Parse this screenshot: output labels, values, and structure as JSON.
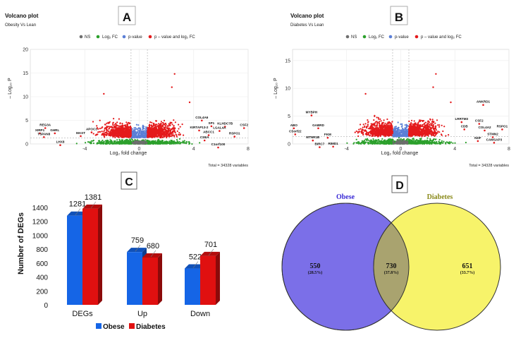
{
  "panels": {
    "A": "A",
    "B": "B",
    "C": "C",
    "D": "D"
  },
  "colors": {
    "ns": "#6e6e6e",
    "log2fc": "#2ca02c",
    "pvalue": "#5b7fd6",
    "both": "#e41a1c",
    "obese": "#1565e6",
    "diabetes": "#e01010",
    "venn_obese": "#7b6fe8",
    "venn_diabetes": "#f7f36a",
    "venn_overlap": "#a9a36f",
    "obese_title": "#3a2bd6",
    "diabetes_title": "#8a8a1a"
  },
  "chart_data": [
    {
      "panel": "A",
      "type": "scatter",
      "title": "Volcano plot",
      "subtitle": "Obesity Vs Lean",
      "legend": [
        "NS",
        "Log₂ FC",
        "p-value",
        "p – value and log₂ FC"
      ],
      "xlabel": "Log₂ fold change",
      "ylabel": "– Log₁₀ P",
      "xlim": [
        -8,
        8
      ],
      "ylim": [
        0,
        20
      ],
      "xticks": [
        -4,
        0,
        4,
        8
      ],
      "yticks": [
        0,
        5,
        10,
        15,
        20
      ],
      "caption": "Total = 34328 variables",
      "labels": [
        {
          "text": "REG3A",
          "x": -6.9,
          "y": 3.8
        },
        {
          "text": "XIRP1",
          "x": -7.3,
          "y": 2.7
        },
        {
          "text": "GHRL",
          "x": -6.2,
          "y": 2.7
        },
        {
          "text": "TSPAN8",
          "x": -7.0,
          "y": 1.9
        },
        {
          "text": "APOC3",
          "x": -3.5,
          "y": 2.9
        },
        {
          "text": "MAST",
          "x": -4.3,
          "y": 2.1
        },
        {
          "text": "LHX8",
          "x": -5.8,
          "y": 0.2
        },
        {
          "text": "COL4A6",
          "x": 4.6,
          "y": 5.4
        },
        {
          "text": "KLHDC7B",
          "x": 6.3,
          "y": 4.1
        },
        {
          "text": "CSF2",
          "x": 7.7,
          "y": 3.8
        },
        {
          "text": "SP1",
          "x": 5.3,
          "y": 4.2
        },
        {
          "text": "KIRTAP13-2",
          "x": 4.4,
          "y": 3.3
        },
        {
          "text": "LGAL4A",
          "x": 5.9,
          "y": 3.2
        },
        {
          "text": "ABCC1",
          "x": 5.1,
          "y": 2.3
        },
        {
          "text": "RSPO1",
          "x": 7.0,
          "y": 2.0
        },
        {
          "text": "CSEA",
          "x": 4.8,
          "y": 1.2
        },
        {
          "text": "C1orf100",
          "x": 5.8,
          "y": -0.3
        }
      ]
    },
    {
      "panel": "B",
      "type": "scatter",
      "title": "Volcano plot",
      "subtitle": "Diabetes Vs Lean",
      "legend": [
        "NS",
        "Log₂ FC",
        "p-value",
        "p – value and log₂ FC"
      ],
      "xlabel": "Log₂ fold change",
      "ylabel": "– Log₁₀ P",
      "xlim": [
        -8,
        8
      ],
      "ylim": [
        0,
        17
      ],
      "xticks": [
        -4,
        0,
        4,
        8
      ],
      "yticks": [
        0,
        5,
        10,
        15
      ],
      "caption": "Total = 34328 variables",
      "labels": [
        {
          "text": "ANKRD1",
          "x": 6.1,
          "y": 7.4
        },
        {
          "text": "MYBPH",
          "x": -6.6,
          "y": 5.5
        },
        {
          "text": "ABO",
          "x": -7.9,
          "y": 3.2
        },
        {
          "text": "CSorf22",
          "x": -7.8,
          "y": 2.1
        },
        {
          "text": "GABRD",
          "x": -6.1,
          "y": 3.2
        },
        {
          "text": "MTNR1B",
          "x": -6.5,
          "y": 1.0
        },
        {
          "text": "FKM",
          "x": -5.4,
          "y": 1.5
        },
        {
          "text": "BIRC7",
          "x": -6.0,
          "y": -0.2
        },
        {
          "text": "RIMD1",
          "x": -5.0,
          "y": -0.1
        },
        {
          "text": "LRRTM3",
          "x": 4.5,
          "y": 4.3
        },
        {
          "text": "CSF2",
          "x": 5.8,
          "y": 4.0
        },
        {
          "text": "CDB",
          "x": 4.7,
          "y": 3.0
        },
        {
          "text": "COL4A2",
          "x": 6.2,
          "y": 2.8
        },
        {
          "text": "RSPO1",
          "x": 7.5,
          "y": 3.0
        },
        {
          "text": "NDF",
          "x": 5.7,
          "y": 0.9
        },
        {
          "text": "STMN2",
          "x": 6.8,
          "y": 1.6
        },
        {
          "text": "CAMSAP3",
          "x": 6.9,
          "y": 0.6
        }
      ]
    },
    {
      "panel": "C",
      "type": "bar",
      "ylabel": "Number of DEGs",
      "categories": [
        "DEGs",
        "Up",
        "Down"
      ],
      "series": [
        {
          "name": "Obese",
          "values": [
            1281,
            759,
            522
          ]
        },
        {
          "name": "Diabetes",
          "values": [
            1381,
            680,
            701
          ]
        }
      ],
      "ylim": [
        0,
        1400
      ],
      "yticks": [
        0,
        200,
        400,
        600,
        800,
        1000,
        1200,
        1400
      ]
    },
    {
      "panel": "D",
      "type": "venn",
      "sets": [
        "Obese",
        "Diabetes"
      ],
      "regions": [
        {
          "set": "Obese only",
          "count": "550",
          "percent": "(28.5%)"
        },
        {
          "set": "Both",
          "count": "730",
          "percent": "(37.8%)"
        },
        {
          "set": "Diabetes only",
          "count": "651",
          "percent": "(33.7%)"
        }
      ]
    }
  ]
}
